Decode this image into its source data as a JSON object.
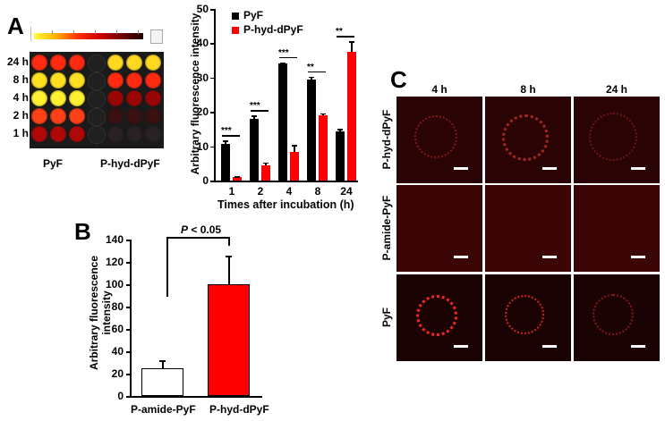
{
  "panels": {
    "A": {
      "letter": "A",
      "plate": {
        "row_labels": [
          "24 h",
          "8 h",
          "4 h",
          "2 h",
          "1 h"
        ],
        "group_labels": [
          "PyF",
          "P-hyd-dPyF"
        ],
        "colorbar": {
          "colors": [
            "#ffff40",
            "#ffb000",
            "#ff3000",
            "#d00000",
            "#700000",
            "#200000"
          ]
        }
      },
      "chart": {
        "legend": [
          {
            "label": "PyF",
            "color": "#000000"
          },
          {
            "label": "P-hyd-dPyF",
            "color": "#ff0000"
          }
        ],
        "ylabel": "Arbitrary fluorescence intensity",
        "xlabel": "Times after incubation (h)",
        "yticks": [
          "0",
          "10",
          "20",
          "30",
          "40",
          "50"
        ],
        "xticks": [
          "1",
          "2",
          "4",
          "8",
          "24"
        ],
        "significance": [
          "***",
          "***",
          "***",
          "**",
          "**"
        ]
      }
    },
    "B": {
      "letter": "B",
      "ylabel_line1": "Arbitrary fluorescence",
      "ylabel_line2": "intensity",
      "yticks": [
        "0",
        "20",
        "40",
        "60",
        "80",
        "100",
        "120",
        "140"
      ],
      "xticks": [
        "P-amide-PyF",
        "P-hyd-dPyF"
      ],
      "pvalue_prefix": "P",
      "pvalue_rest": " < 0.05"
    },
    "C": {
      "letter": "C",
      "col_labels": [
        "4 h",
        "8 h",
        "24 h"
      ],
      "row_labels": [
        "P-hyd-dPyF",
        "P-amide-PyF",
        "PyF"
      ]
    }
  },
  "chart_data": [
    {
      "type": "bar",
      "title": "",
      "categories": [
        "1",
        "2",
        "4",
        "8",
        "24"
      ],
      "series": [
        {
          "name": "PyF",
          "values": [
            10.8,
            18.0,
            34.0,
            29.5,
            14.2
          ],
          "errors": [
            0.8,
            1.0,
            0.5,
            0.8,
            0.8
          ],
          "color": "#000000"
        },
        {
          "name": "P-hyd-dPyF",
          "values": [
            1.0,
            4.3,
            8.4,
            18.9,
            37.6
          ],
          "errors": [
            0.3,
            1.0,
            1.9,
            0.7,
            3.0
          ],
          "color": "#ff0000"
        }
      ],
      "annotations": [
        "***",
        "***",
        "***",
        "**",
        "**"
      ],
      "xlabel": "Times after incubation (h)",
      "ylabel": "Arbitrary fluorescence intensity",
      "ylim": [
        0,
        50
      ],
      "legend_position": "upper left",
      "grid": false
    },
    {
      "type": "bar",
      "title": "",
      "categories": [
        "P-amide-PyF",
        "P-hyd-dPyF"
      ],
      "values": [
        25,
        100
      ],
      "errors": [
        7,
        26
      ],
      "colors": [
        "#ffffff",
        "#ff0000"
      ],
      "annotations": [
        "P < 0.05"
      ],
      "xlabel": "",
      "ylabel": "Arbitrary fluorescence intensity",
      "ylim": [
        0,
        140
      ],
      "grid": false
    }
  ]
}
